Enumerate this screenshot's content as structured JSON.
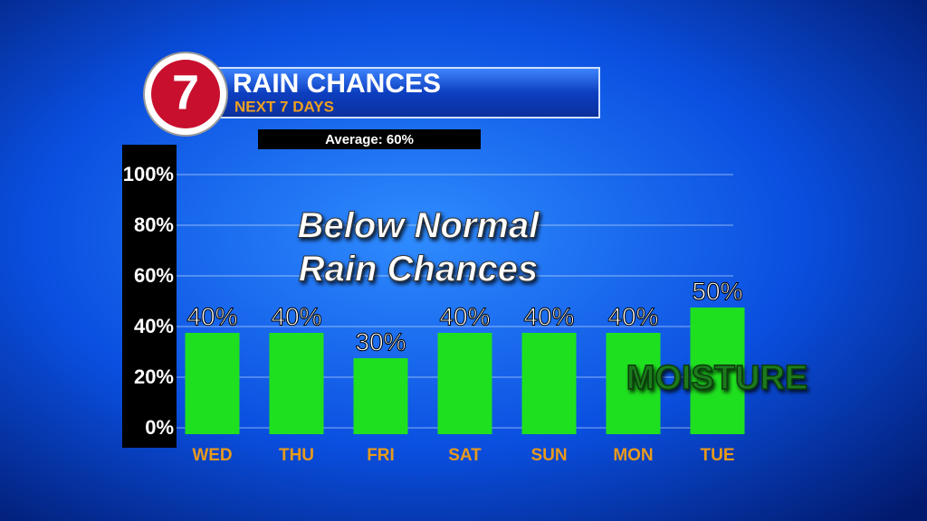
{
  "logo": "7",
  "chart_data": {
    "type": "bar",
    "title": "RAIN CHANCES",
    "subtitle": "NEXT 7 DAYS",
    "annotations": [
      "Average: 60%",
      "Below Normal",
      "Rain Chances",
      "MOISTURE"
    ],
    "categories": [
      "WED",
      "THU",
      "FRI",
      "SAT",
      "SUN",
      "MON",
      "TUE"
    ],
    "values": [
      40,
      40,
      30,
      40,
      40,
      40,
      50
    ],
    "value_labels": [
      "40%",
      "40%",
      "30%",
      "40%",
      "40%",
      "40%",
      "50%"
    ],
    "color": "#1fe01f",
    "ylim": [
      0,
      100
    ],
    "yticks": [
      {
        "value": 0,
        "label": "0%"
      },
      {
        "value": 20,
        "label": "20%"
      },
      {
        "value": 40,
        "label": "40%"
      },
      {
        "value": 60,
        "label": "60%"
      },
      {
        "value": 80,
        "label": "80%"
      },
      {
        "value": 100,
        "label": "100%"
      }
    ],
    "grid": true
  }
}
